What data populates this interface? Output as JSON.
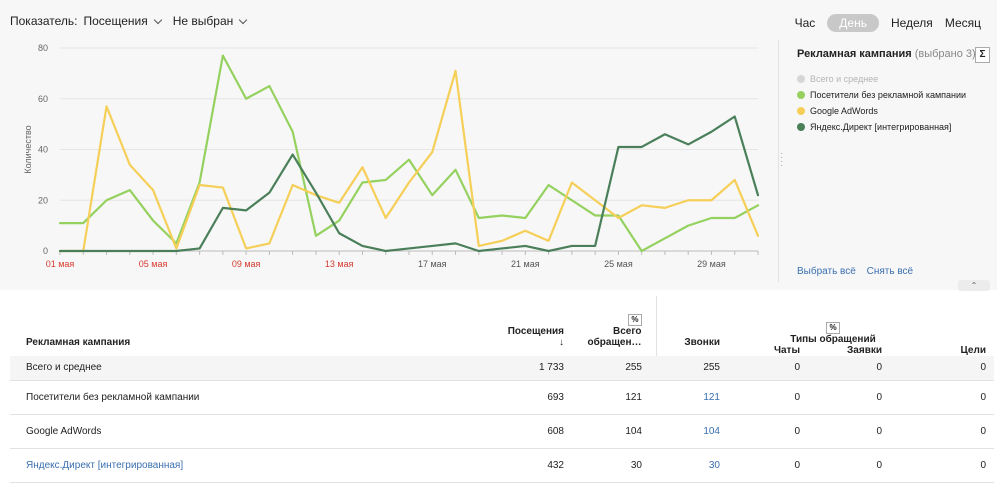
{
  "toolbar": {
    "indicator_label": "Показатель:",
    "metric": "Посещения",
    "segment": "Не выбран"
  },
  "periods": {
    "hour": "Час",
    "day": "День",
    "week": "Неделя",
    "month": "Месяц",
    "active": "day"
  },
  "legend": {
    "title": "Рекламная кампания",
    "subtitle": "(выбрано 3)",
    "sigma": "Σ",
    "items": [
      {
        "label": "Всего и среднее",
        "color": "#d6d6d6",
        "muted": true
      },
      {
        "label": "Посетители без рекламной кампании",
        "color": "#95d15f"
      },
      {
        "label": "Google AdWords",
        "color": "#f5cf58"
      },
      {
        "label": "Яндекс.Директ [интегрированная]",
        "color": "#4a7f5a"
      }
    ],
    "select_all": "Выбрать всё",
    "clear_all": "Снять всё"
  },
  "chart_data": {
    "type": "line",
    "ylabel": "Количество",
    "ylim": [
      0,
      80
    ],
    "yticks": [
      0,
      20,
      40,
      60,
      80
    ],
    "x_tick_labels": [
      {
        "day": 1,
        "label": "01 мая",
        "weekend": true
      },
      {
        "day": 5,
        "label": "05 мая",
        "weekend": true
      },
      {
        "day": 9,
        "label": "09 мая",
        "weekend": true
      },
      {
        "day": 13,
        "label": "13 мая",
        "weekend": true
      },
      {
        "day": 17,
        "label": "17 мая",
        "weekend": false
      },
      {
        "day": 21,
        "label": "21 мая",
        "weekend": false
      },
      {
        "day": 25,
        "label": "25 мая",
        "weekend": false
      },
      {
        "day": 29,
        "label": "29 мая",
        "weekend": false
      }
    ],
    "x": [
      1,
      2,
      3,
      4,
      5,
      6,
      7,
      8,
      9,
      10,
      11,
      12,
      13,
      14,
      15,
      16,
      17,
      18,
      19,
      20,
      21,
      22,
      23,
      24,
      25,
      26,
      27,
      28,
      29,
      30,
      31
    ],
    "series": [
      {
        "name": "Посетители без рекламной кампании",
        "color": "#95d15f",
        "values": [
          11,
          11,
          20,
          24,
          12,
          3,
          27,
          77,
          60,
          65,
          47,
          6,
          12,
          27,
          28,
          36,
          22,
          32,
          13,
          14,
          13,
          26,
          20,
          14,
          14,
          0,
          5,
          10,
          13,
          13,
          18
        ]
      },
      {
        "name": "Google AdWords",
        "color": "#f5cf58",
        "values": [
          0,
          0,
          57,
          34,
          24,
          1,
          26,
          25,
          1,
          3,
          26,
          22,
          19,
          33,
          13,
          27,
          39,
          71,
          2,
          4,
          8,
          4,
          27,
          20,
          13,
          18,
          17,
          20,
          20,
          28,
          6
        ]
      },
      {
        "name": "Яндекс.Директ [интегрированная]",
        "color": "#4a7f5a",
        "values": [
          0,
          0,
          0,
          0,
          0,
          0,
          1,
          17,
          16,
          23,
          38,
          23,
          7,
          2,
          0,
          1,
          2,
          3,
          0,
          1,
          2,
          0,
          2,
          2,
          41,
          41,
          46,
          42,
          47,
          53,
          22
        ]
      }
    ]
  },
  "table": {
    "headers": {
      "campaign": "Рекламная кампания",
      "visits": "Посещения",
      "sort_icon": "↓",
      "pct_badge": "%",
      "total_requests": "Всего обращен…",
      "calls": "Звонки",
      "types": "Типы обращений",
      "chats": "Чаты",
      "forms": "Заявки",
      "goals": "Цели"
    },
    "rows": [
      {
        "name": "Всего и среднее",
        "visits": "1 733",
        "total": "255",
        "calls": "255",
        "chats": "0",
        "forms": "0",
        "goals": "0",
        "name_link": false,
        "calls_link": false
      },
      {
        "name": "Посетители без рекламной кампании",
        "visits": "693",
        "total": "121",
        "calls": "121",
        "chats": "0",
        "forms": "0",
        "goals": "0",
        "name_link": false,
        "calls_link": true
      },
      {
        "name": "Google AdWords",
        "visits": "608",
        "total": "104",
        "calls": "104",
        "chats": "0",
        "forms": "0",
        "goals": "0",
        "name_link": false,
        "calls_link": true
      },
      {
        "name": "Яндекс.Директ [интегрированная]",
        "visits": "432",
        "total": "30",
        "calls": "30",
        "chats": "0",
        "forms": "0",
        "goals": "0",
        "name_link": true,
        "calls_link": true
      }
    ]
  }
}
